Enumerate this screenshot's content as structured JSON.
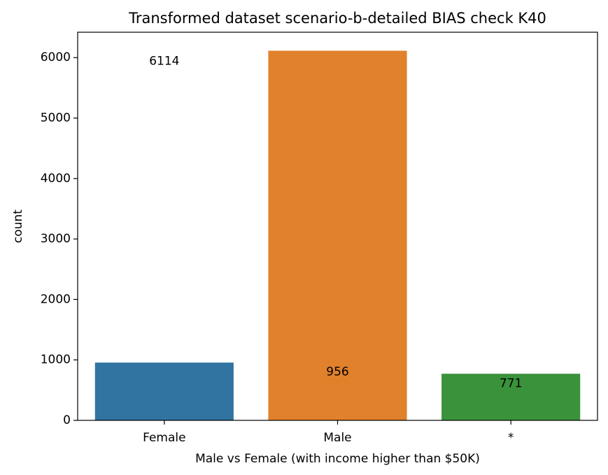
{
  "chart_data": {
    "type": "bar",
    "title": "Transformed dataset scenario-b-detailed BIAS check K40",
    "xlabel": "Male vs Female (with income higher than $50K)",
    "ylabel": "count",
    "categories": [
      "Female",
      "Male",
      "*"
    ],
    "values": [
      956,
      6114,
      771
    ],
    "bar_colors": [
      "#3274a1",
      "#e1812c",
      "#3a923a"
    ],
    "data_labels": [
      "6114",
      "956",
      "771"
    ],
    "data_label_values": [
      5940,
      800,
      611
    ],
    "ylim": [
      0,
      6420
    ],
    "yticks": [
      0,
      1000,
      2000,
      3000,
      4000,
      5000,
      6000
    ],
    "grid": false
  }
}
